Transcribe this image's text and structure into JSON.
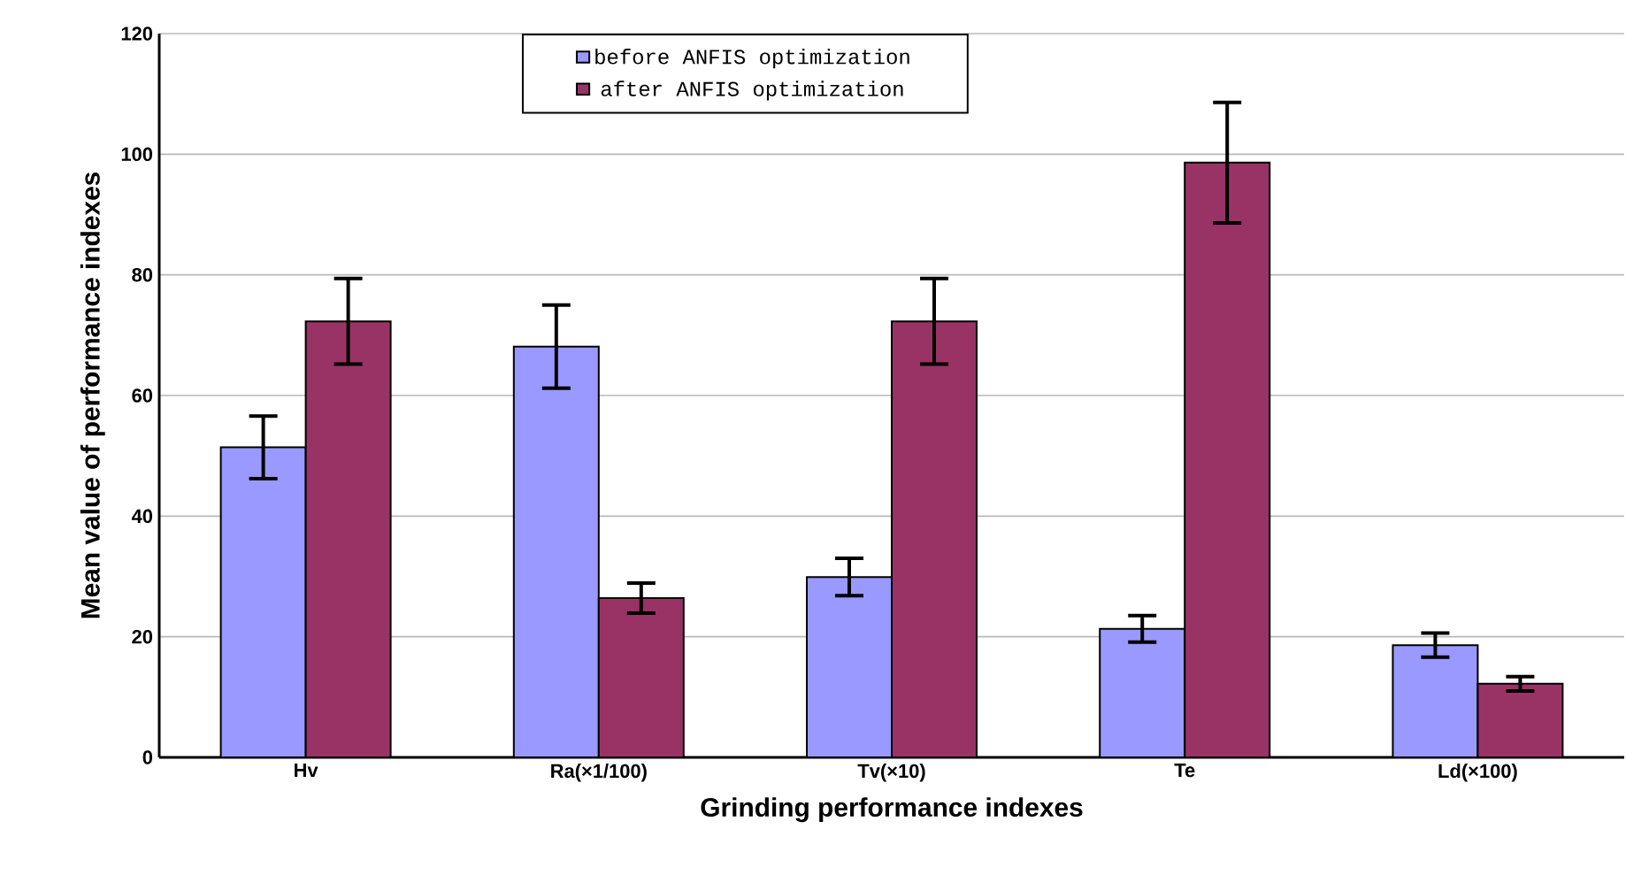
{
  "chart_data": {
    "type": "bar",
    "xlabel": "Grinding performance indexes",
    "ylabel": "Mean value of performance indexes",
    "categories": [
      "Hv",
      "Ra(×1/100)",
      "Tv(×10)",
      "Te",
      "Ld(×100)"
    ],
    "series": [
      {
        "name": "before ANFIS optimization",
        "color": "#9999ff",
        "values": [
          51.4,
          68.1,
          29.9,
          21.3,
          18.6
        ],
        "errors": [
          5.2,
          6.9,
          3.1,
          2.2,
          2.0
        ]
      },
      {
        "name": "after ANFIS optimization",
        "color": "#993366",
        "values": [
          72.3,
          26.4,
          72.3,
          98.6,
          12.2
        ],
        "errors": [
          7.1,
          2.5,
          7.1,
          10.0,
          1.2
        ]
      }
    ],
    "ylim": [
      0,
      120
    ],
    "yticks": [
      0,
      20,
      40,
      60,
      80,
      100,
      120
    ],
    "grid": "y",
    "legend": "top"
  }
}
